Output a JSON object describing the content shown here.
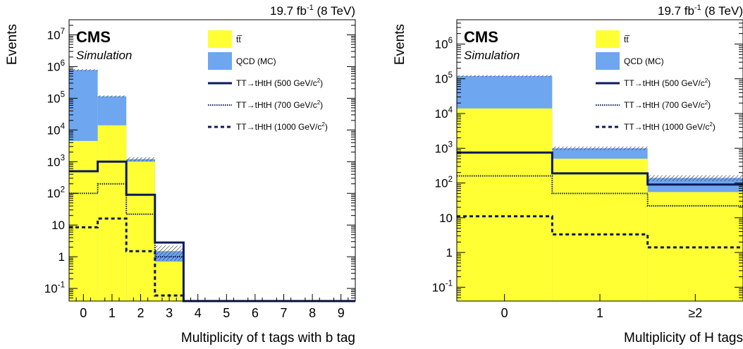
{
  "colors": {
    "qcd": "#6ea6f0",
    "ttbar": "#ffff33",
    "signal": "#0b1a5c",
    "axis": "#000000"
  },
  "chart_data": [
    {
      "type": "bar",
      "stacked": true,
      "log_y": true,
      "ylim": [
        0.04,
        30000000
      ],
      "lumi": "19.7 fb",
      "lumi_exp": "-1",
      "lumi_energy": "(8 TeV)",
      "cms_label": "CMS",
      "sim_label": "Simulation",
      "xlabel": "Multiplicity of t tags with b tag",
      "ylabel": "Events",
      "categories": [
        "0",
        "1",
        "2",
        "3",
        "4",
        "5",
        "6",
        "7",
        "8",
        "9"
      ],
      "y_ticks": [
        {
          "v": 0.1,
          "base": "10",
          "exp": "-1"
        },
        {
          "v": 1,
          "base": "1",
          "exp": ""
        },
        {
          "v": 10,
          "base": "10",
          "exp": ""
        },
        {
          "v": 100,
          "base": "10",
          "exp": "2"
        },
        {
          "v": 1000,
          "base": "10",
          "exp": "3"
        },
        {
          "v": 10000,
          "base": "10",
          "exp": "4"
        },
        {
          "v": 100000,
          "base": "10",
          "exp": "5"
        },
        {
          "v": 1000000,
          "base": "10",
          "exp": "6"
        },
        {
          "v": 10000000,
          "base": "10",
          "exp": "7"
        }
      ],
      "series": [
        {
          "name": "tt̅",
          "kind": "fill",
          "color": "ttbar",
          "values": [
            4500,
            14000,
            1000,
            0.7,
            0,
            0,
            0,
            0,
            0,
            0
          ]
        },
        {
          "name": "QCD (MC)",
          "kind": "fill",
          "color": "qcd",
          "values": [
            780000,
            115000,
            1200,
            1.5,
            0,
            0,
            0,
            0,
            0,
            0
          ]
        },
        {
          "name": "TT→tHtH (500 GeV/c",
          "sup": "2",
          "kind": "line",
          "style": "solid",
          "values": [
            500,
            1000,
            90,
            2.8,
            0,
            0,
            0,
            0,
            0,
            0
          ]
        },
        {
          "name": "TT→tHtH (700 GeV/c",
          "sup": "2",
          "kind": "line",
          "style": "dotted",
          "values": [
            100,
            200,
            22,
            1.0,
            0,
            0,
            0,
            0,
            0,
            0
          ]
        },
        {
          "name": "TT→tHtH (1000 GeV/c",
          "sup": "2",
          "kind": "line",
          "style": "dashed",
          "values": [
            8.5,
            16,
            1.5,
            0.06,
            0,
            0,
            0,
            0,
            0,
            0
          ]
        }
      ],
      "uncertainty": [
        0.07,
        0.07,
        0.15,
        0.5,
        0,
        0,
        0,
        0,
        0,
        0
      ]
    },
    {
      "type": "bar",
      "stacked": true,
      "log_y": true,
      "ylim": [
        0.04,
        5000000
      ],
      "lumi": "19.7 fb",
      "lumi_exp": "-1",
      "lumi_energy": "(8 TeV)",
      "cms_label": "CMS",
      "sim_label": "Simulation",
      "xlabel": "Multiplicity of H tags",
      "ylabel": "Events",
      "categories": [
        "0",
        "1",
        "≥2"
      ],
      "y_ticks": [
        {
          "v": 0.1,
          "base": "10",
          "exp": "-1"
        },
        {
          "v": 1,
          "base": "1",
          "exp": ""
        },
        {
          "v": 10,
          "base": "10",
          "exp": ""
        },
        {
          "v": 100,
          "base": "10",
          "exp": "2"
        },
        {
          "v": 1000,
          "base": "10",
          "exp": "3"
        },
        {
          "v": 10000,
          "base": "10",
          "exp": "4"
        },
        {
          "v": 100000,
          "base": "10",
          "exp": "5"
        },
        {
          "v": 1000000,
          "base": "10",
          "exp": "6"
        }
      ],
      "series": [
        {
          "name": "tt̅",
          "kind": "fill",
          "color": "ttbar",
          "values": [
            14000,
            500,
            55
          ]
        },
        {
          "name": "QCD (MC)",
          "kind": "fill",
          "color": "qcd",
          "values": [
            120000,
            1000,
            140
          ]
        },
        {
          "name": "TT→tHtH (500 GeV/c",
          "sup": "2",
          "kind": "line",
          "style": "solid",
          "values": [
            750,
            190,
            90
          ]
        },
        {
          "name": "TT→tHtH (700 GeV/c",
          "sup": "2",
          "kind": "line",
          "style": "dotted",
          "values": [
            160,
            50,
            22
          ]
        },
        {
          "name": "TT→tHtH (1000 GeV/c",
          "sup": "2",
          "kind": "line",
          "style": "dashed",
          "values": [
            11,
            3.3,
            1.4
          ]
        }
      ],
      "uncertainty": [
        0.06,
        0.12,
        0.2
      ]
    }
  ]
}
